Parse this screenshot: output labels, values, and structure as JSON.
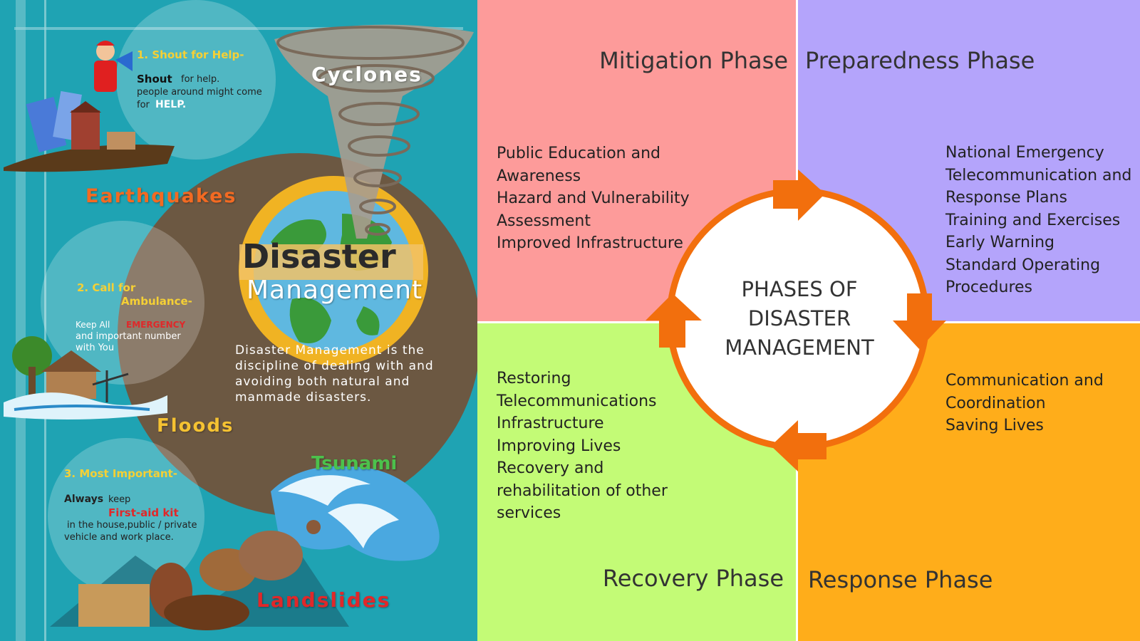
{
  "colors": {
    "poster_bg": "#1fa3b3",
    "mitigation": "#fd9b9a",
    "preparedness": "#b4a4fb",
    "recovery": "#c3fb76",
    "response": "#ffad1a",
    "cycle_ring": "#f26f0d"
  },
  "poster": {
    "hazards": {
      "cyclones": "Cyclones",
      "earthquakes": "Earthquakes",
      "floods": "Floods",
      "tsunami": "Tsunami",
      "landslides": "Landslides"
    },
    "title": {
      "line1": "Disaster",
      "line2": "Management"
    },
    "definition": {
      "line1": "Disaster Management is the",
      "line2": "discipline of dealing with and",
      "line3": "avoiding both natural and",
      "line4": "manmade disasters."
    },
    "tips": [
      {
        "heading": "1. Shout for Help-",
        "bold": "Shout",
        "text1": "for help.",
        "text2": "people around might come",
        "text3": "for",
        "text3_bold": "HELP."
      },
      {
        "heading1": "2. Call for",
        "heading2": "Ambulance-",
        "text1a": "Keep All",
        "text1b": "EMERGENCY",
        "text2": "and important number",
        "text3": "with You"
      },
      {
        "heading": "3. Most Important-",
        "text1a": "Always",
        "text1b": "keep",
        "highlight": "First-aid kit",
        "text2": "in the house,public / private",
        "text3": "vehicle and work place."
      }
    ],
    "icons": [
      "megaphone-person-icon",
      "collapsed-buildings-icon",
      "flooded-house-icon",
      "tornado-icon",
      "globe-icon",
      "wave-icon",
      "rockslide-icon"
    ]
  },
  "phases": {
    "center": {
      "line1": "PHASES OF",
      "line2": "DISASTER",
      "line3": "MANAGEMENT"
    },
    "mitigation": {
      "title": "Mitigation Phase",
      "items": [
        "Public Education and",
        "Awareness",
        "Hazard and Vulnerability",
        "Assessment",
        "Improved Infrastructure"
      ]
    },
    "preparedness": {
      "title": "Preparedness Phase",
      "items": [
        "National Emergency",
        "Telecommunication and",
        "Response Plans",
        "Training and Exercises",
        "Early Warning",
        "Standard Operating",
        "Procedures"
      ]
    },
    "recovery": {
      "title": "Recovery Phase",
      "items": [
        "Restoring",
        "Telecommunications",
        "Infrastructure",
        "Improving Lives",
        "Recovery and",
        "rehabilitation of other",
        "services"
      ]
    },
    "response": {
      "title": "Response Phase",
      "items": [
        "Communication and",
        "Coordination",
        "Saving Lives"
      ]
    }
  }
}
